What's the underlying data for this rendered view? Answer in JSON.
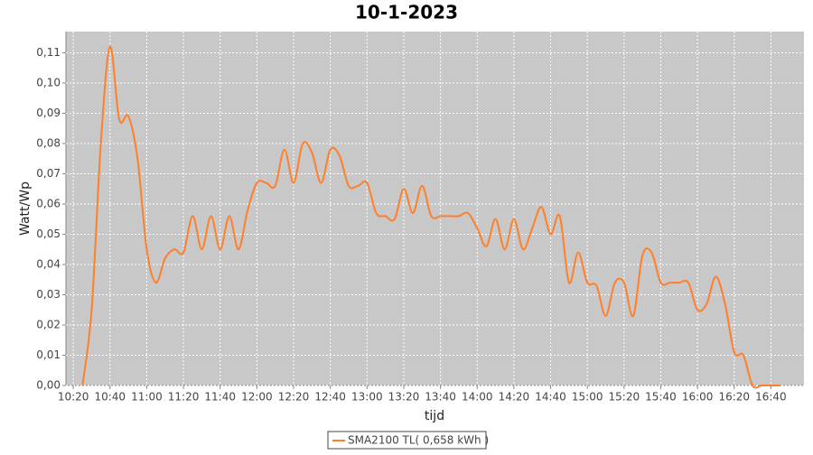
{
  "chart_data": {
    "type": "line",
    "title": "10-1-2023",
    "x_label": "tijd",
    "y_label": "Watt/Wp",
    "grid": true,
    "legend_position": "bottom",
    "xlim": [
      "10:16",
      "16:58"
    ],
    "xticks": [
      "10:20",
      "10:40",
      "11:00",
      "11:20",
      "11:40",
      "12:00",
      "12:20",
      "12:40",
      "13:00",
      "13:20",
      "13:40",
      "14:00",
      "14:20",
      "14:40",
      "15:00",
      "15:20",
      "15:40",
      "16:00",
      "16:20",
      "16:40"
    ],
    "ylim": [
      0,
      0.117
    ],
    "yticks": [
      {
        "value": 0,
        "label": "0,00"
      },
      {
        "value": 0.01,
        "label": "0,01"
      },
      {
        "value": 0.02,
        "label": "0,02"
      },
      {
        "value": 0.03,
        "label": "0,03"
      },
      {
        "value": 0.04,
        "label": "0,04"
      },
      {
        "value": 0.05,
        "label": "0,05"
      },
      {
        "value": 0.06,
        "label": "0,06"
      },
      {
        "value": 0.07,
        "label": "0,07"
      },
      {
        "value": 0.08,
        "label": "0,08"
      },
      {
        "value": 0.09,
        "label": "0,09"
      },
      {
        "value": 0.1,
        "label": "0,10"
      },
      {
        "value": 0.11,
        "label": "0,11"
      }
    ],
    "x": [
      "10:25",
      "10:30",
      "10:35",
      "10:40",
      "10:45",
      "10:50",
      "10:55",
      "11:00",
      "11:05",
      "11:10",
      "11:15",
      "11:20",
      "11:25",
      "11:30",
      "11:35",
      "11:40",
      "11:45",
      "11:50",
      "11:55",
      "12:00",
      "12:05",
      "12:10",
      "12:15",
      "12:20",
      "12:25",
      "12:30",
      "12:35",
      "12:40",
      "12:45",
      "12:50",
      "12:55",
      "13:00",
      "13:05",
      "13:10",
      "13:15",
      "13:20",
      "13:25",
      "13:30",
      "13:35",
      "13:40",
      "13:45",
      "13:50",
      "13:55",
      "14:00",
      "14:05",
      "14:10",
      "14:15",
      "14:20",
      "14:25",
      "14:30",
      "14:35",
      "14:40",
      "14:45",
      "14:50",
      "14:55",
      "15:00",
      "15:05",
      "15:10",
      "15:15",
      "15:20",
      "15:25",
      "15:30",
      "15:35",
      "15:40",
      "15:45",
      "15:50",
      "15:55",
      "16:00",
      "16:05",
      "16:10",
      "16:15",
      "16:20",
      "16:25",
      "16:30",
      "16:35",
      "16:40",
      "16:45"
    ],
    "series": [
      {
        "name": "SMA2100 TL( 0,658 kWh )",
        "color": "#ff7f2a",
        "values": [
          0.0,
          0.025,
          0.08,
          0.112,
          0.088,
          0.089,
          0.075,
          0.045,
          0.034,
          0.042,
          0.045,
          0.044,
          0.056,
          0.045,
          0.056,
          0.045,
          0.056,
          0.045,
          0.058,
          0.067,
          0.067,
          0.066,
          0.078,
          0.067,
          0.08,
          0.077,
          0.067,
          0.078,
          0.076,
          0.066,
          0.066,
          0.067,
          0.057,
          0.056,
          0.055,
          0.065,
          0.057,
          0.066,
          0.056,
          0.056,
          0.056,
          0.056,
          0.057,
          0.052,
          0.046,
          0.055,
          0.045,
          0.055,
          0.045,
          0.052,
          0.059,
          0.05,
          0.056,
          0.034,
          0.044,
          0.034,
          0.033,
          0.023,
          0.034,
          0.034,
          0.023,
          0.043,
          0.044,
          0.034,
          0.034,
          0.034,
          0.034,
          0.025,
          0.027,
          0.036,
          0.027,
          0.011,
          0.01,
          0.0,
          0.0,
          0.0,
          0.0
        ]
      }
    ]
  }
}
